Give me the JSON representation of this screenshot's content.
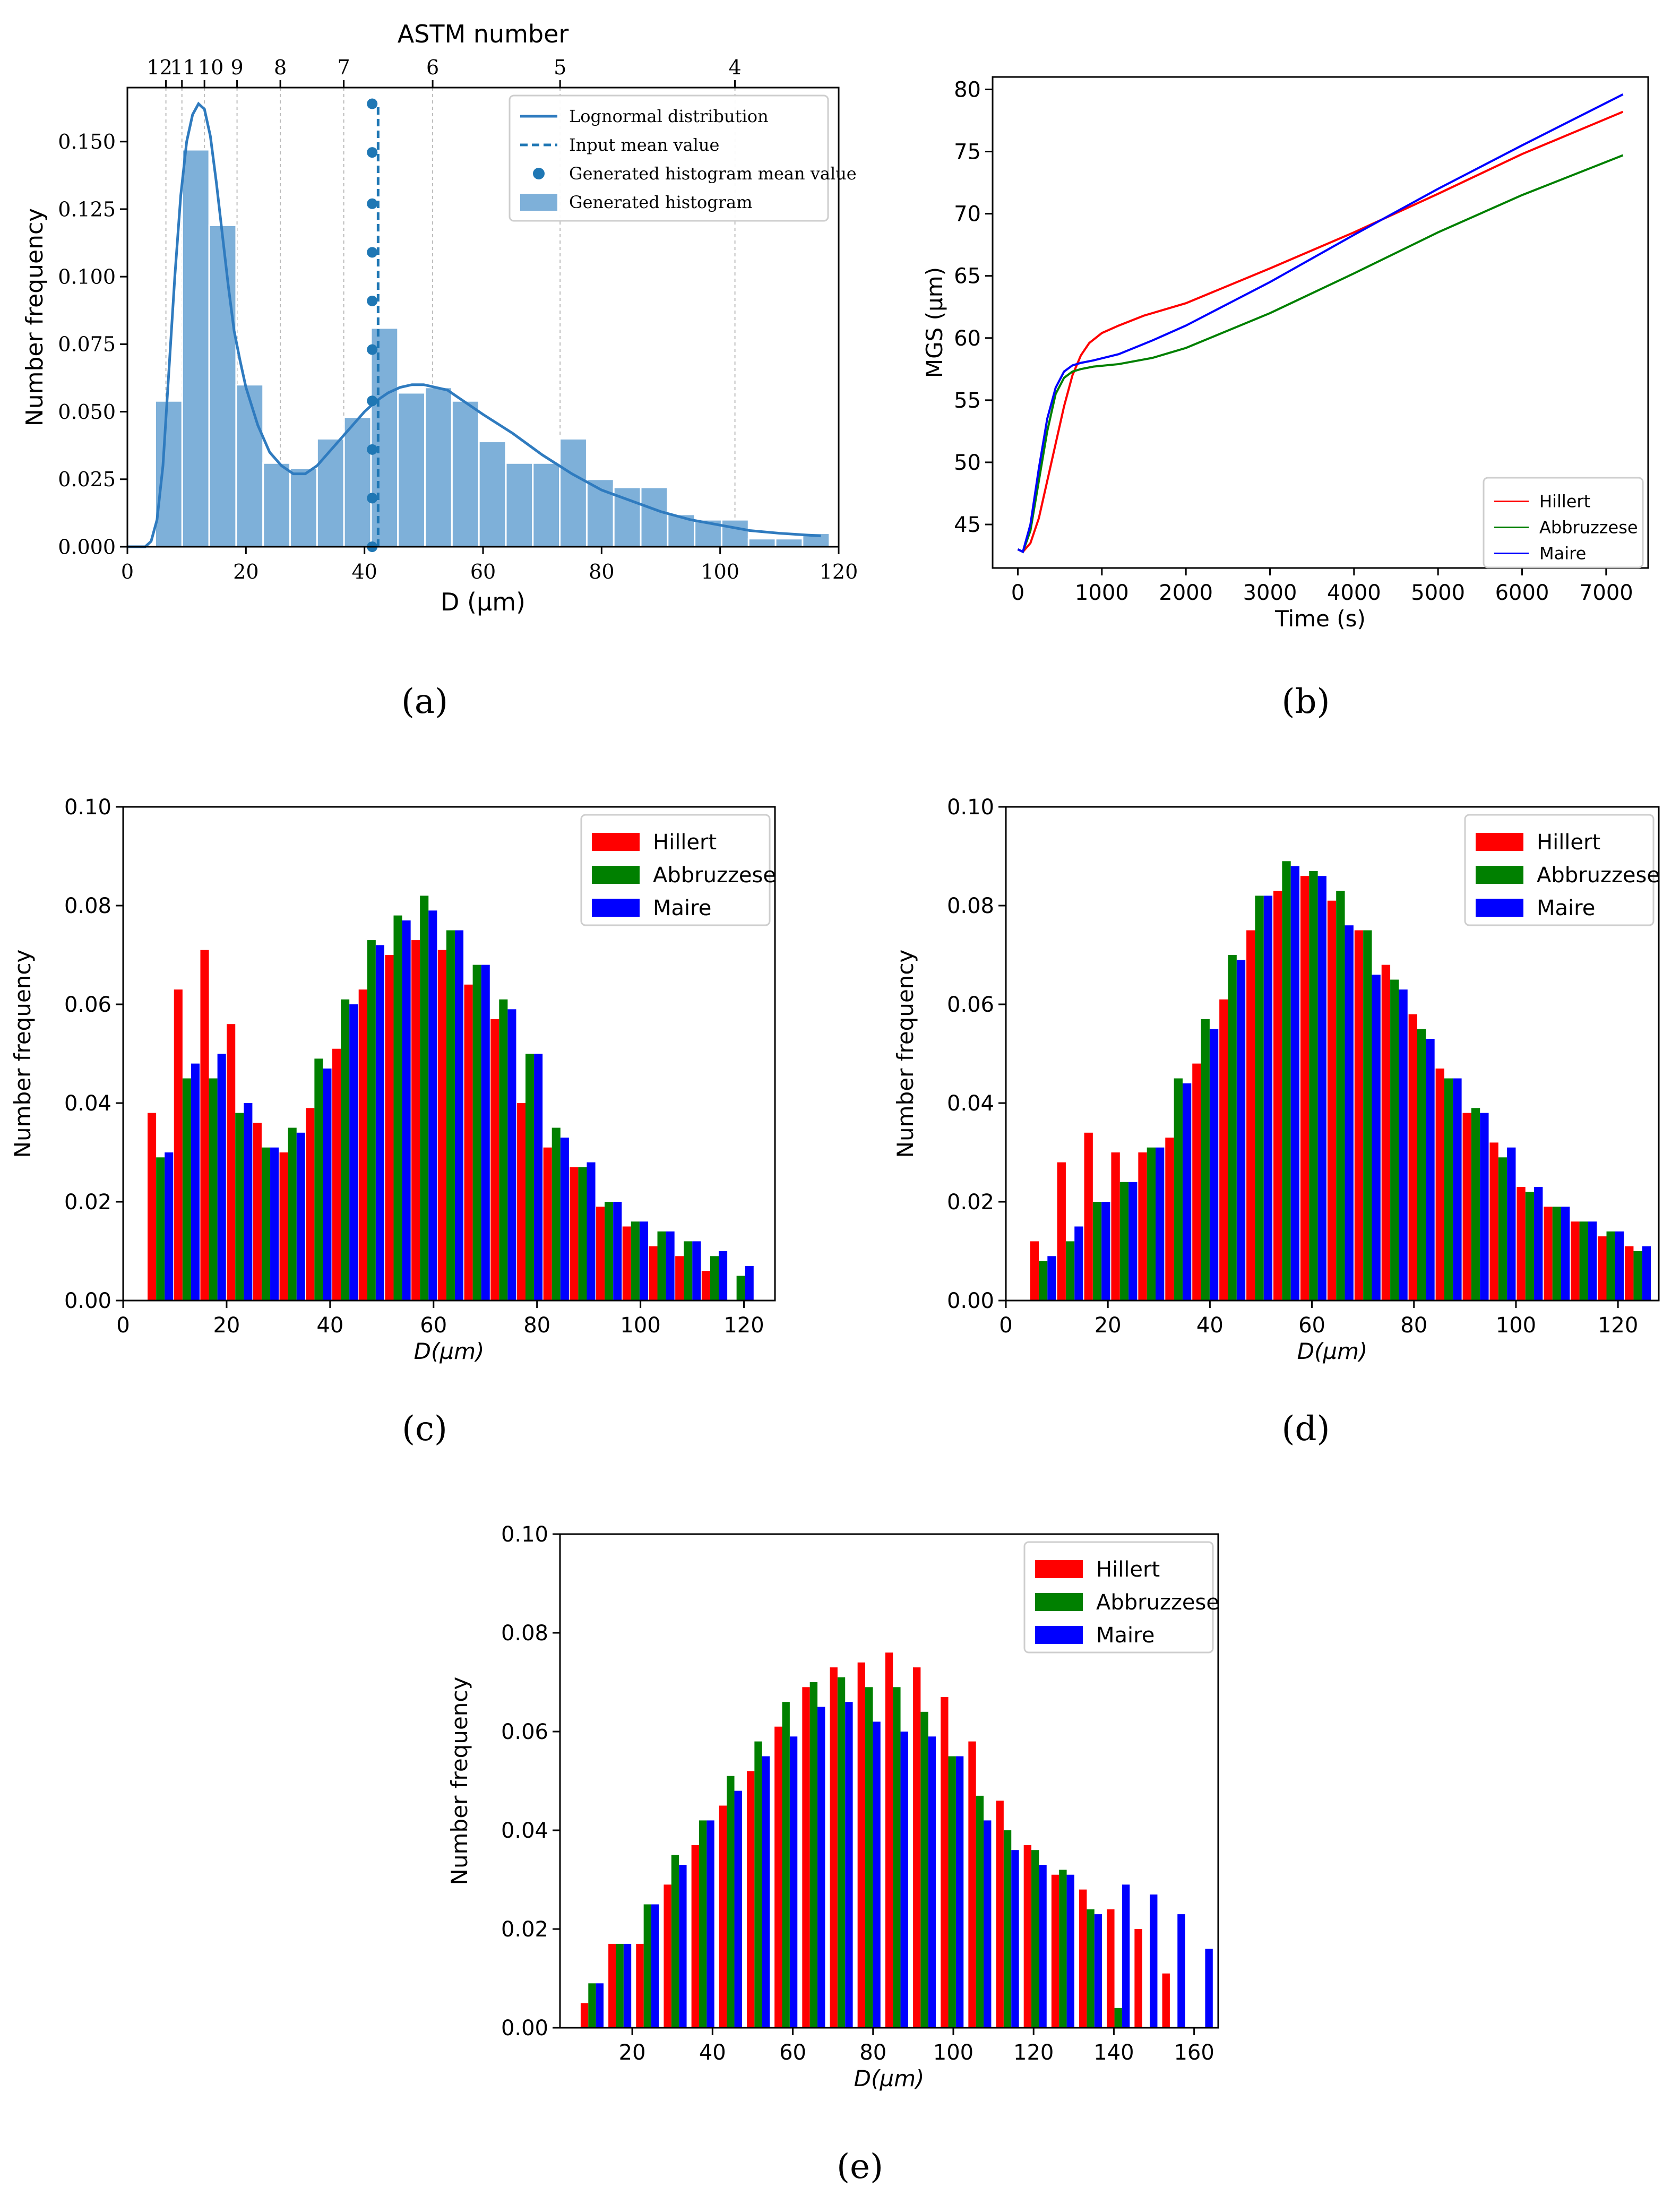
{
  "captions": {
    "a": "(a)",
    "b": "(b)",
    "c": "(c)",
    "d": "(d)",
    "e": "(e)"
  },
  "chart_data": [
    {
      "id": "a",
      "type": "bar",
      "title": "ASTM number",
      "xlabel": "D (µm)",
      "ylabel": "Number frequency",
      "xlim": [
        0,
        120
      ],
      "ylim": [
        0,
        0.17
      ],
      "xticks": [
        0,
        20,
        40,
        60,
        80,
        100,
        120
      ],
      "yticks": [
        0.0,
        0.025,
        0.05,
        0.075,
        0.1,
        0.125,
        0.15
      ],
      "ytick_labels": [
        "0.000",
        "0.025",
        "0.050",
        "0.075",
        "0.100",
        "0.125",
        "0.150"
      ],
      "top_axis": {
        "labels": [
          "12",
          "11",
          "10",
          "9",
          "8",
          "7",
          "6",
          "5",
          "4"
        ],
        "positions": [
          6.5,
          9.2,
          13,
          18.5,
          25.8,
          36.5,
          51.5,
          73,
          102.5
        ]
      },
      "histogram": {
        "name": "Generated histogram",
        "color": "#7eb0d9",
        "bin_width": 4.55,
        "bin_starts": [
          4.7,
          9.25,
          13.8,
          18.35,
          22.9,
          27.45,
          32.0,
          36.55,
          41.1,
          45.65,
          50.2,
          54.75,
          59.3,
          63.85,
          68.4,
          72.95,
          77.5,
          82.05,
          86.6,
          91.15,
          95.7,
          100.25,
          104.8,
          109.35,
          113.9
        ],
        "values": [
          0.054,
          0.147,
          0.119,
          0.06,
          0.031,
          0.029,
          0.04,
          0.048,
          0.081,
          0.057,
          0.059,
          0.054,
          0.039,
          0.031,
          0.031,
          0.04,
          0.025,
          0.022,
          0.022,
          0.012,
          0.01,
          0.01,
          0.003,
          0.003,
          0.005
        ]
      },
      "curve": {
        "name": "Lognormal distribution",
        "color": "#2f7bbf",
        "x": [
          0,
          3,
          4,
          5,
          6,
          7,
          8,
          9,
          10,
          11,
          12,
          13,
          14,
          15,
          16,
          17,
          18,
          19,
          20,
          22,
          24,
          26,
          28,
          30,
          32,
          34,
          36,
          38,
          40,
          42,
          44,
          46,
          48,
          50,
          52,
          54,
          56,
          58,
          60,
          65,
          70,
          75,
          80,
          85,
          90,
          95,
          100,
          105,
          110,
          117
        ],
        "y": [
          0.0,
          0.0,
          0.002,
          0.01,
          0.03,
          0.065,
          0.1,
          0.13,
          0.15,
          0.16,
          0.164,
          0.162,
          0.152,
          0.135,
          0.116,
          0.097,
          0.08,
          0.069,
          0.059,
          0.045,
          0.035,
          0.03,
          0.027,
          0.027,
          0.03,
          0.035,
          0.04,
          0.045,
          0.05,
          0.054,
          0.057,
          0.059,
          0.06,
          0.06,
          0.059,
          0.058,
          0.055,
          0.052,
          0.049,
          0.042,
          0.034,
          0.027,
          0.021,
          0.017,
          0.013,
          0.01,
          0.008,
          0.006,
          0.005,
          0.004
        ]
      },
      "mean_line": {
        "name": "Input mean value",
        "x": 42.3,
        "color": "#1f77b4"
      },
      "mean_points": {
        "name": "Generated histogram mean value",
        "x": 41.3,
        "y": [
          0.0,
          0.018,
          0.036,
          0.054,
          0.073,
          0.091,
          0.109,
          0.127,
          0.146,
          0.164
        ],
        "color": "#1f77b4"
      },
      "legend": [
        "Lognormal distribution",
        "Input mean value",
        "Generated histogram mean value",
        "Generated histogram"
      ],
      "legend_position": "top-right"
    },
    {
      "id": "b",
      "type": "line",
      "xlabel": "Time (s)",
      "ylabel": "MGS (μm)",
      "xlim": [
        -300,
        7500
      ],
      "ylim": [
        41.5,
        81
      ],
      "xticks": [
        0,
        1000,
        2000,
        3000,
        4000,
        5000,
        6000,
        7000
      ],
      "yticks": [
        45,
        50,
        55,
        60,
        65,
        70,
        75,
        80
      ],
      "series": [
        {
          "name": "Hillert",
          "color": "#ff0000",
          "x": [
            0,
            60,
            150,
            250,
            350,
            450,
            550,
            650,
            750,
            850,
            1000,
            1200,
            1500,
            2000,
            3000,
            4000,
            5000,
            6000,
            7200
          ],
          "y": [
            43.0,
            42.8,
            43.5,
            45.5,
            48.5,
            51.5,
            54.5,
            57.0,
            58.6,
            59.6,
            60.4,
            61.0,
            61.8,
            62.8,
            65.6,
            68.5,
            71.6,
            74.8,
            78.2
          ]
        },
        {
          "name": "Abbruzzese",
          "color": "#008000",
          "x": [
            0,
            60,
            150,
            250,
            350,
            450,
            550,
            650,
            750,
            900,
            1200,
            1600,
            2000,
            3000,
            4000,
            5000,
            6000,
            7200
          ],
          "y": [
            43.0,
            42.8,
            44.5,
            48.5,
            52.5,
            55.5,
            56.8,
            57.3,
            57.5,
            57.7,
            57.9,
            58.4,
            59.2,
            62.0,
            65.2,
            68.5,
            71.5,
            74.7
          ]
        },
        {
          "name": "Maire",
          "color": "#0000ff",
          "x": [
            0,
            60,
            150,
            250,
            350,
            450,
            550,
            650,
            750,
            900,
            1200,
            1600,
            2000,
            3000,
            4000,
            5000,
            6000,
            7200
          ],
          "y": [
            43.0,
            42.8,
            45.0,
            49.5,
            53.5,
            56.0,
            57.3,
            57.8,
            58.0,
            58.2,
            58.7,
            59.8,
            61.0,
            64.5,
            68.3,
            72.0,
            75.5,
            79.6
          ]
        }
      ],
      "legend_position": "bottom-right"
    },
    {
      "id": "c",
      "type": "bar",
      "xlabel": "D(μm)",
      "ylabel": "Number frequency",
      "xlim": [
        0,
        126
      ],
      "ylim": [
        0,
        0.1
      ],
      "xticks": [
        0,
        20,
        40,
        60,
        80,
        100,
        120
      ],
      "yticks": [
        0.0,
        0.02,
        0.04,
        0.06,
        0.08,
        0.1
      ],
      "x": [
        7.2,
        12.3,
        17.4,
        22.5,
        27.6,
        32.7,
        37.8,
        42.9,
        48.0,
        53.1,
        58.2,
        63.3,
        68.4,
        73.5,
        78.6,
        83.7,
        88.8,
        93.9,
        99.0,
        104.1,
        109.2,
        114.3,
        119.4
      ],
      "bar_width": 1.65,
      "series": [
        {
          "name": "Hillert",
          "color": "#ff0000",
          "values": [
            0.038,
            0.063,
            0.071,
            0.056,
            0.036,
            0.03,
            0.039,
            0.051,
            0.063,
            0.07,
            0.073,
            0.071,
            0.064,
            0.057,
            0.04,
            0.031,
            0.027,
            0.019,
            0.015,
            0.011,
            0.009,
            0.006,
            0.0
          ]
        },
        {
          "name": "Abbruzzese",
          "color": "#008000",
          "values": [
            0.029,
            0.045,
            0.045,
            0.038,
            0.031,
            0.035,
            0.049,
            0.061,
            0.073,
            0.078,
            0.082,
            0.075,
            0.068,
            0.061,
            0.05,
            0.035,
            0.027,
            0.02,
            0.016,
            0.014,
            0.012,
            0.009,
            0.005
          ]
        },
        {
          "name": "Maire",
          "color": "#0000ff",
          "values": [
            0.03,
            0.048,
            0.05,
            0.04,
            0.031,
            0.034,
            0.047,
            0.06,
            0.072,
            0.077,
            0.079,
            0.075,
            0.068,
            0.059,
            0.05,
            0.033,
            0.028,
            0.02,
            0.016,
            0.014,
            0.012,
            0.01,
            0.007
          ]
        }
      ],
      "legend_position": "top-right"
    },
    {
      "id": "d",
      "type": "bar",
      "xlabel": "D(μm)",
      "ylabel": "Number frequency",
      "xlim": [
        0,
        128
      ],
      "ylim": [
        0,
        0.1
      ],
      "xticks": [
        0,
        20,
        40,
        60,
        80,
        100,
        120
      ],
      "yticks": [
        0.0,
        0.02,
        0.04,
        0.06,
        0.08,
        0.1
      ],
      "x": [
        7.3,
        12.6,
        17.9,
        23.2,
        28.5,
        33.8,
        39.1,
        44.4,
        49.7,
        55.0,
        60.3,
        65.6,
        70.9,
        76.2,
        81.5,
        86.8,
        92.1,
        97.4,
        102.7,
        108.0,
        113.3,
        118.6,
        123.9
      ],
      "bar_width": 1.7,
      "series": [
        {
          "name": "Hillert",
          "color": "#ff0000",
          "values": [
            0.012,
            0.028,
            0.034,
            0.03,
            0.03,
            0.033,
            0.048,
            0.061,
            0.075,
            0.083,
            0.086,
            0.081,
            0.075,
            0.068,
            0.058,
            0.047,
            0.038,
            0.032,
            0.023,
            0.019,
            0.016,
            0.013,
            0.011
          ]
        },
        {
          "name": "Abbruzzese",
          "color": "#008000",
          "values": [
            0.008,
            0.012,
            0.02,
            0.024,
            0.031,
            0.045,
            0.057,
            0.07,
            0.082,
            0.089,
            0.087,
            0.083,
            0.075,
            0.065,
            0.055,
            0.045,
            0.039,
            0.029,
            0.022,
            0.019,
            0.016,
            0.014,
            0.01
          ]
        },
        {
          "name": "Maire",
          "color": "#0000ff",
          "values": [
            0.009,
            0.015,
            0.02,
            0.024,
            0.031,
            0.044,
            0.055,
            0.069,
            0.082,
            0.088,
            0.086,
            0.076,
            0.066,
            0.063,
            0.053,
            0.045,
            0.038,
            0.031,
            0.023,
            0.019,
            0.016,
            0.014,
            0.011
          ]
        }
      ],
      "legend_position": "top-right"
    },
    {
      "id": "e",
      "type": "bar",
      "xlabel": "D(μm)",
      "ylabel": "Number frequency",
      "xlim": [
        2,
        166
      ],
      "ylim": [
        0,
        0.1
      ],
      "xticks": [
        20,
        40,
        60,
        80,
        100,
        120,
        140,
        160
      ],
      "yticks": [
        0.0,
        0.02,
        0.04,
        0.06,
        0.08,
        0.1
      ],
      "x": [
        10.0,
        16.9,
        23.8,
        30.7,
        37.6,
        44.5,
        51.4,
        58.3,
        65.2,
        72.1,
        79.0,
        85.9,
        92.8,
        99.7,
        106.6,
        113.5,
        120.4,
        127.3,
        134.2,
        141.1,
        148.0,
        154.9,
        161.8
      ],
      "bar_width": 1.9,
      "series": [
        {
          "name": "Hillert",
          "color": "#ff0000",
          "values": [
            0.005,
            0.017,
            0.017,
            0.029,
            0.037,
            0.045,
            0.052,
            0.061,
            0.069,
            0.073,
            0.074,
            0.076,
            0.073,
            0.067,
            0.058,
            0.046,
            0.037,
            0.031,
            0.028,
            0.024,
            0.02,
            0.011,
            0.0
          ]
        },
        {
          "name": "Abbruzzese",
          "color": "#008000",
          "values": [
            0.009,
            0.017,
            0.025,
            0.035,
            0.042,
            0.051,
            0.058,
            0.066,
            0.07,
            0.071,
            0.069,
            0.069,
            0.064,
            0.055,
            0.047,
            0.04,
            0.036,
            0.032,
            0.024,
            0.004,
            0.0,
            0.0,
            0.0
          ]
        },
        {
          "name": "Maire",
          "color": "#0000ff",
          "values": [
            0.009,
            0.017,
            0.025,
            0.033,
            0.042,
            0.048,
            0.055,
            0.059,
            0.065,
            0.066,
            0.062,
            0.06,
            0.059,
            0.055,
            0.042,
            0.036,
            0.033,
            0.031,
            0.023,
            0.029,
            0.027,
            0.023,
            0.016
          ]
        }
      ],
      "legend_position": "top-right"
    }
  ]
}
